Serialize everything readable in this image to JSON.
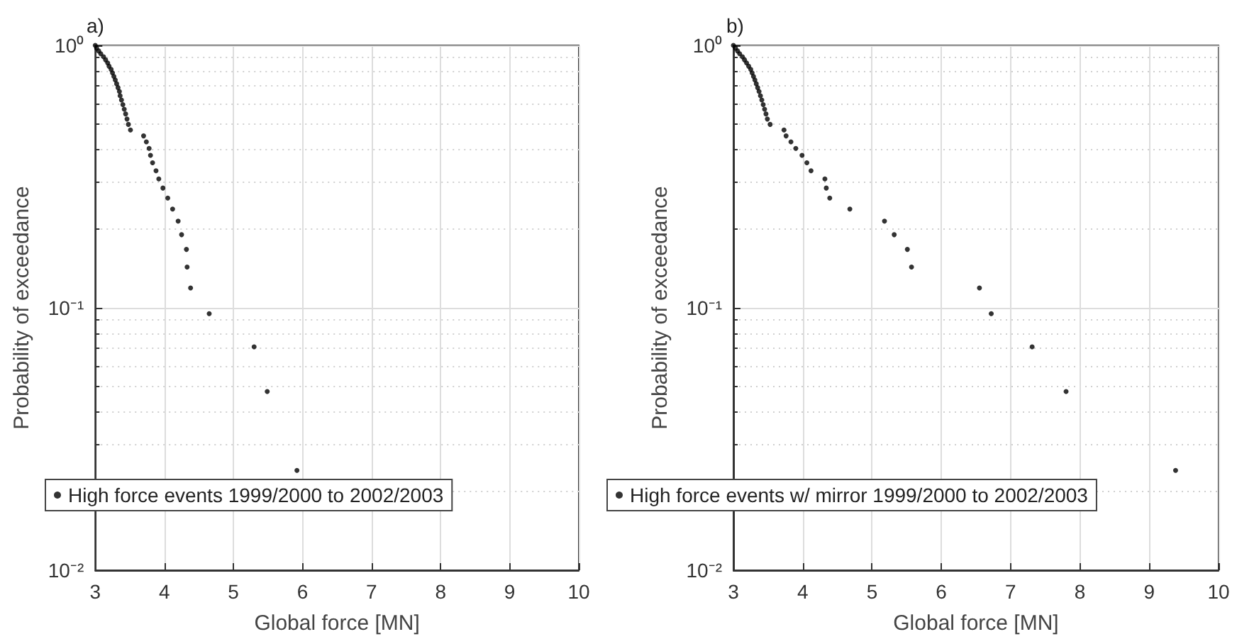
{
  "chart_data": [
    {
      "type": "scatter",
      "title": "a)",
      "xlabel": "Global force [MN]",
      "ylabel": "Probability of exceedance",
      "log": "y",
      "grid": true,
      "legend": "bottom",
      "marker": "circle",
      "xlim": [
        3,
        10
      ],
      "xticks": [
        3,
        4,
        5,
        6,
        7,
        8,
        9,
        10
      ],
      "ylim": [
        0.01,
        1
      ],
      "yticks": [
        {
          "value": 0.01,
          "label": "10⁻²"
        },
        {
          "value": 0.1,
          "label": "10⁻¹"
        },
        {
          "value": 1,
          "label": "10⁰"
        }
      ],
      "series": [
        {
          "name": "High force events 1999/2000 to 2002/2003",
          "color": "#000000",
          "x": [
            3.0,
            3.02,
            3.05,
            3.08,
            3.12,
            3.15,
            3.18,
            3.2,
            3.23,
            3.25,
            3.27,
            3.29,
            3.31,
            3.33,
            3.35,
            3.36,
            3.38,
            3.4,
            3.42,
            3.44,
            3.46,
            3.48,
            3.51,
            3.7,
            3.74,
            3.78,
            3.8,
            3.83,
            3.88,
            3.92,
            3.98,
            4.05,
            4.12,
            4.2,
            4.25,
            4.32,
            4.33,
            4.38,
            4.65,
            5.3,
            5.49,
            5.92
          ],
          "values": [
            1,
            0.976,
            0.952,
            0.929,
            0.905,
            0.881,
            0.857,
            0.833,
            0.81,
            0.786,
            0.762,
            0.738,
            0.714,
            0.69,
            0.667,
            0.643,
            0.619,
            0.595,
            0.571,
            0.548,
            0.524,
            0.5,
            0.476,
            0.452,
            0.429,
            0.405,
            0.381,
            0.357,
            0.333,
            0.31,
            0.286,
            0.262,
            0.238,
            0.214,
            0.19,
            0.167,
            0.143,
            0.119,
            0.095,
            0.071,
            0.048,
            0.024
          ]
        }
      ]
    },
    {
      "type": "scatter",
      "title": "b)",
      "xlabel": "Global force [MN]",
      "ylabel": "Probability of exceedance",
      "log": "y",
      "grid": true,
      "legend": "bottom",
      "marker": "circle",
      "xlim": [
        3,
        10
      ],
      "xticks": [
        3,
        4,
        5,
        6,
        7,
        8,
        9,
        10
      ],
      "ylim": [
        0.01,
        1
      ],
      "yticks": [
        {
          "value": 0.01,
          "label": "10⁻²"
        },
        {
          "value": 0.1,
          "label": "10⁻¹"
        },
        {
          "value": 1,
          "label": "10⁰"
        }
      ],
      "series": [
        {
          "name": "High force events w/ mirror 1999/2000 to 2002/2003",
          "color": "#000000",
          "x": [
            3.0,
            3.03,
            3.06,
            3.09,
            3.13,
            3.16,
            3.19,
            3.22,
            3.25,
            3.27,
            3.29,
            3.31,
            3.33,
            3.35,
            3.37,
            3.39,
            3.41,
            3.43,
            3.45,
            3.47,
            3.49,
            3.53,
            3.73,
            3.76,
            3.83,
            3.9,
            3.99,
            4.06,
            4.12,
            4.32,
            4.34,
            4.39,
            4.68,
            5.18,
            5.32,
            5.51,
            5.57,
            6.55,
            6.72,
            7.31,
            7.8,
            9.38
          ],
          "values": [
            1,
            0.976,
            0.952,
            0.929,
            0.905,
            0.881,
            0.857,
            0.833,
            0.81,
            0.786,
            0.762,
            0.738,
            0.714,
            0.69,
            0.667,
            0.643,
            0.619,
            0.595,
            0.571,
            0.548,
            0.524,
            0.5,
            0.476,
            0.452,
            0.429,
            0.405,
            0.381,
            0.357,
            0.333,
            0.31,
            0.286,
            0.262,
            0.238,
            0.214,
            0.19,
            0.167,
            0.143,
            0.119,
            0.095,
            0.071,
            0.048,
            0.024
          ]
        }
      ]
    }
  ]
}
